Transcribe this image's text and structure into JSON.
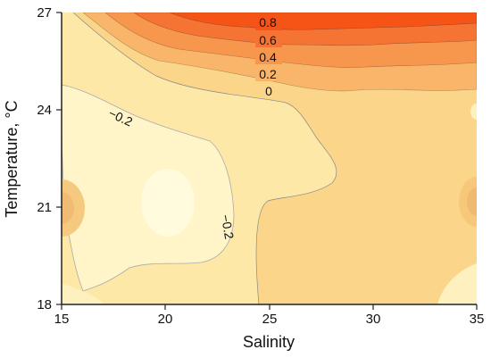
{
  "chart_data": {
    "type": "contour",
    "xlabel": "Salinity",
    "ylabel": "Temperature, °C",
    "xlim": [
      15,
      35
    ],
    "ylim": [
      18,
      27
    ],
    "x_ticks": [
      15,
      20,
      25,
      30,
      35
    ],
    "y_ticks": [
      18,
      21,
      24,
      27
    ],
    "x_tick_labels": [
      "15",
      "20",
      "25",
      "30",
      "35"
    ],
    "y_tick_labels": [
      "18",
      "21",
      "24",
      "27"
    ],
    "grid": false,
    "contour_levels": [
      -0.2,
      0,
      0.2,
      0.4,
      0.6,
      0.8
    ],
    "contour_labels": [
      {
        "text": "0.8",
        "x": 25.6,
        "y": 26.5,
        "angle": 0
      },
      {
        "text": "0.6",
        "x": 25.6,
        "y": 25.8,
        "angle": 0
      },
      {
        "text": "0.4",
        "x": 25.6,
        "y": 25.2,
        "angle": 0
      },
      {
        "text": "0.2",
        "x": 25.6,
        "y": 24.6,
        "angle": 0
      },
      {
        "text": "0",
        "x": 25.6,
        "y": 24.0,
        "angle": 0
      },
      {
        "text": "−0.2",
        "x": 17.6,
        "y": 23.5,
        "angle": 25
      },
      {
        "text": "−0.2",
        "x": 23.2,
        "y": 20.4,
        "angle": 80
      }
    ],
    "colors": {
      "level_lt_-0.2": "#fff5c8",
      "level_-0.2_0": "#fde8a8",
      "level_0_0.2": "#fbd58a",
      "level_0.2_0.4": "#f9b66a",
      "level_0.4_0.6": "#f7974d",
      "level_0.6_0.8": "#f67433",
      "level_gt_0.8": "#f55416"
    }
  }
}
